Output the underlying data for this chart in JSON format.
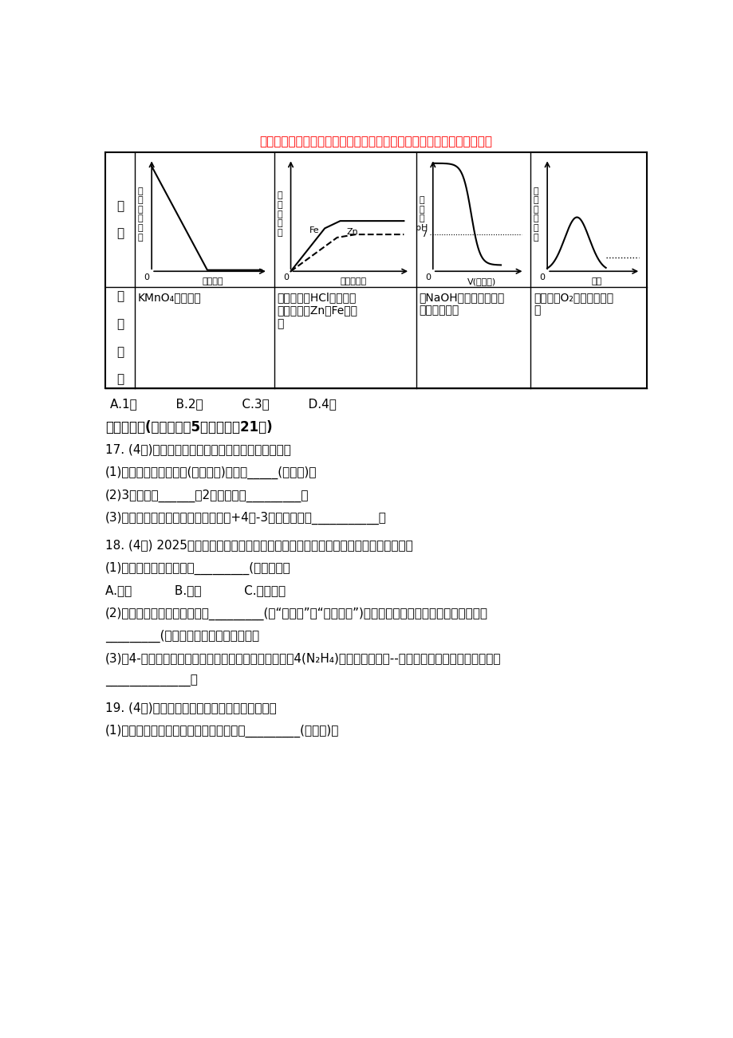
{
  "title_red": "年寒窗苦读日，只盼金榜题名时，祝你考试拿高分，鲤鱼跳龙门！加油！",
  "background_color": "#ffffff",
  "col1_reaction": "KMnO₄受热分解",
  "col2_reaction": "向含等质量HCl的稀盐酸\n中分别加入Zn和Fe至过\n量",
  "col3_reaction": "向NaOH溶液中逐滴加入\n稀盐酸至过量",
  "col4_reaction": "硫在充满O₂的集气瓶中燃\n烧",
  "answer_line": "A.1个          B.2个          C.3个          D.4个",
  "section2_title": "二、填空题(本大题包扨5个小题，刑21分)",
  "q17": "17. (4分)氮化硅是新型陶瓷材料。用化学用语填空。",
  "q17_1": "(1)硅元素在地壳中含量(质量分数)位居第_____(填数字)。",
  "q17_2": "(2)3个硅原子______；2个氮气分子_________。",
  "q17_3": "(3)氮化硅中硅、氮元素化合价分别为+4和-3，其化学式为___________。",
  "q18": "18. (4分) 2025年长安汽车厂将停止销售传统燃油车，新能源汽车发展成为主要趋势。",
  "q18_1": "(1)下列不属于新能源的是_________(填序号）。",
  "q18_abc": "A.氢能           B.汽油           C.生物质能",
  "q18_2": "(2)乙醇是一种生物燃料，它是_________(填“可再生”或“不可再生”)能源。乙醇在空气中完全燃烧生成水和",
  "q18_2b": "_________(写化学式），并放出大量热。",
  "q18_3": "(3)耧4-空气燃料电池有织应用于汽车工业，其原理是耧4(N₂H₄)与氧气反应生成--种单质和水，反应化学方程式为",
  "q18_3b": "______________。",
  "q19": "19. (4分)钓合金、铝合金广泛应用于航空工业。",
  "q19_1": "(1)下列矿石主要成分含相同金属元素的是_________(填序号)。"
}
